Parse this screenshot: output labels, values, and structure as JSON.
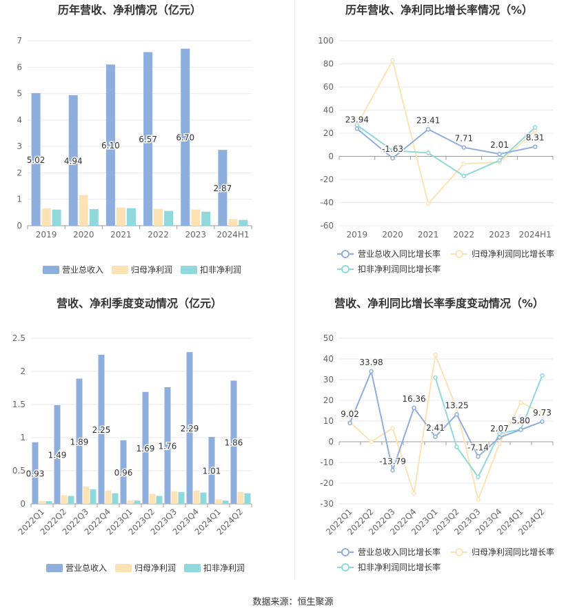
{
  "footer": {
    "source": "数据来源：恒生聚源"
  },
  "colors": {
    "revenue": "#8eaedd",
    "net_profit": "#fde2b3",
    "deducted_profit": "#8fd8db",
    "revenue_line": "#8eaedd",
    "net_profit_line": "#fde2b3",
    "deducted_line": "#8fd8db"
  },
  "chart_data": [
    {
      "id": "c1",
      "type": "bar",
      "title": "历年营收、净利情况（亿元）",
      "categories": [
        "2019",
        "2020",
        "2021",
        "2022",
        "2023",
        "2024H1"
      ],
      "ylim": [
        0,
        7
      ],
      "yticks": [
        "0",
        "1",
        "2",
        "3",
        "4",
        "5",
        "6",
        "7"
      ],
      "series": [
        {
          "name": "营业总收入",
          "values": [
            5.02,
            4.94,
            6.1,
            6.57,
            6.7,
            2.87
          ],
          "labels": [
            "5.02",
            "4.94",
            "6.10",
            "6.57",
            "6.70",
            "2.87"
          ]
        },
        {
          "name": "归母净利润",
          "values": [
            0.65,
            1.16,
            0.69,
            0.64,
            0.61,
            0.25
          ]
        },
        {
          "name": "扣非净利润",
          "values": [
            0.61,
            0.63,
            0.66,
            0.56,
            0.53,
            0.22
          ]
        }
      ],
      "legend": "bottom",
      "grid": true
    },
    {
      "id": "c2",
      "type": "line",
      "title": "历年营收、净利同比增长率情况（%）",
      "categories": [
        "2019",
        "2020",
        "2021",
        "2022",
        "2023",
        "2024H1"
      ],
      "ylim": [
        -60,
        100
      ],
      "yticks": [
        "-60",
        "-40",
        "-20",
        "0",
        "20",
        "40",
        "60",
        "80",
        "100"
      ],
      "series": [
        {
          "name": "营业总收入同比增长率",
          "values": [
            23.94,
            -1.63,
            23.41,
            7.71,
            2.01,
            8.31
          ],
          "labels": [
            "23.94",
            "-1.63",
            "23.41",
            "7.71",
            "2.01",
            "8.31"
          ]
        },
        {
          "name": "归母净利润同比增长率",
          "values": [
            27.0,
            83.0,
            -41.0,
            -6.5,
            -5.0,
            22.0
          ]
        },
        {
          "name": "扣非净利润同比增长率",
          "values": [
            27.0,
            5.0,
            3.0,
            -17.0,
            -3.5,
            25.0
          ]
        }
      ],
      "legend": "bottom",
      "grid": true
    },
    {
      "id": "c3",
      "type": "bar",
      "title": "营收、净利季度变动情况（亿元）",
      "categories": [
        "2022Q1",
        "2022Q2",
        "2022Q3",
        "2022Q4",
        "2023Q1",
        "2023Q2",
        "2023Q3",
        "2023Q4",
        "2024Q1",
        "2024Q2"
      ],
      "ylim": [
        0,
        2.5
      ],
      "yticks": [
        "0",
        "0.5",
        "1",
        "1.5",
        "2",
        "2.5"
      ],
      "series": [
        {
          "name": "营业总收入",
          "values": [
            0.93,
            1.49,
            1.89,
            2.25,
            0.96,
            1.69,
            1.76,
            2.29,
            1.01,
            1.86
          ],
          "labels": [
            "0.93",
            "1.49",
            "1.89",
            "2.25",
            "0.96",
            "1.69",
            "1.76",
            "2.29",
            "1.01",
            "1.86"
          ]
        },
        {
          "name": "归母净利润",
          "values": [
            0.04,
            0.13,
            0.26,
            0.2,
            0.05,
            0.15,
            0.19,
            0.2,
            0.07,
            0.18
          ]
        },
        {
          "name": "扣非净利润",
          "values": [
            0.04,
            0.12,
            0.22,
            0.16,
            0.05,
            0.12,
            0.18,
            0.17,
            0.05,
            0.16
          ]
        }
      ],
      "legend": "bottom",
      "grid": true
    },
    {
      "id": "c4",
      "type": "line",
      "title": "营收、净利同比增长率季度变动情况（%）",
      "categories": [
        "2022Q1",
        "2022Q2",
        "2022Q3",
        "2022Q4",
        "2023Q1",
        "2023Q2",
        "2023Q3",
        "2023Q4",
        "2024Q1",
        "2024Q2"
      ],
      "ylim": [
        -30,
        50
      ],
      "yticks": [
        "-30",
        "-20",
        "-10",
        "0",
        "10",
        "20",
        "30",
        "40",
        "50"
      ],
      "series": [
        {
          "name": "营业总收入同比增长率",
          "values": [
            9.02,
            33.98,
            -13.79,
            16.36,
            2.41,
            13.25,
            -7.14,
            2.07,
            5.8,
            9.73
          ],
          "labels": [
            "9.02",
            "33.98",
            "-13.79",
            "16.36",
            "2.41",
            "13.25",
            "-7.14",
            "2.07",
            "5.80",
            "9.73"
          ]
        },
        {
          "name": "归母净利润同比增长率",
          "values": [
            9.5,
            0,
            6.5,
            -25,
            42,
            16,
            -28,
            -1,
            19,
            14
          ]
        },
        {
          "name": "扣非净利润同比增长率",
          "values": [
            null,
            null,
            null,
            null,
            31,
            -2.5,
            -17,
            4,
            6,
            32
          ]
        }
      ],
      "legend": "bottom",
      "grid": true
    }
  ]
}
